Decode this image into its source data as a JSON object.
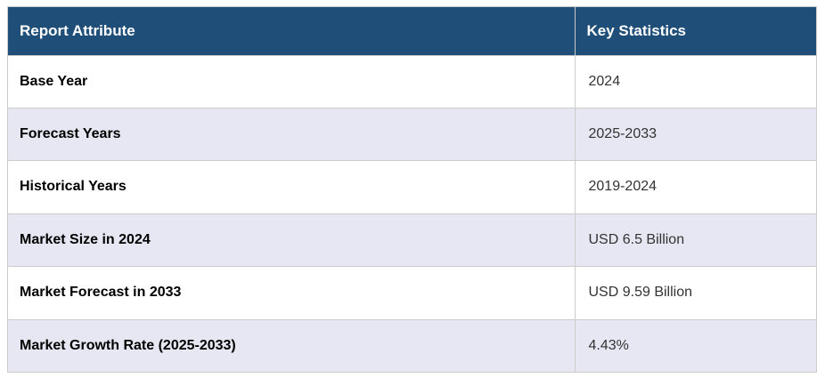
{
  "chart_data": {
    "type": "table",
    "title": "Report Attribute / Key Statistics summary",
    "columns": [
      "Report Attribute",
      "Key Statistics"
    ],
    "rows": [
      [
        "Base Year",
        "2024"
      ],
      [
        "Forecast Years",
        "2025-2033"
      ],
      [
        "Historical Years",
        "2019-2024"
      ],
      [
        "Market Size in 2024",
        "USD 6.5 Billion"
      ],
      [
        "Market Forecast in 2033",
        "USD 9.59 Billion"
      ],
      [
        "Market Growth Rate (2025-2033)",
        "4.43%"
      ]
    ],
    "layout_hints": {
      "header_row": true,
      "zebra_striping": "even data rows white, odd alternating lavender",
      "column_width_ratio": [
        0.7,
        0.3
      ]
    }
  },
  "theme": {
    "header_bg": "#1f4e79",
    "header_text": "#ffffff",
    "alt_row_bg": "#e6e7f2",
    "row_bg": "#ffffff",
    "border_color": "#cccccc",
    "label_color": "#000000",
    "value_color": "#333333"
  }
}
